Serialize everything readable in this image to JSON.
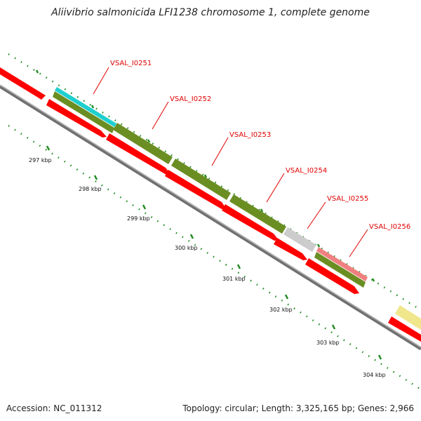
{
  "title": "Aliivibrio salmonicida LFI1238 chromosome 1, complete genome",
  "footer": {
    "accession": "Accession: NC_011312",
    "summary": "Topology: circular; Length: 3,325,165 bp; Genes: 2,966"
  },
  "colors": {
    "cds": "#ff0000",
    "gene": "#6b8e23",
    "backbone": "#808080",
    "tick": "#228b22",
    "label": "#e00000",
    "trna": "#1ecfcf",
    "pseudo": "#cccccc",
    "rrna": "#f08080",
    "misc": "#f0e68c"
  },
  "gene_labels": [
    "VSAL_I0251",
    "VSAL_I0252",
    "VSAL_I0253",
    "VSAL_I0254",
    "VSAL_I0255",
    "VSAL_I0256"
  ],
  "scale_labels": [
    "297 kbp",
    "298 kbp",
    "299 kbp",
    "300 kbp",
    "301 kbp",
    "302 kbp",
    "303 kbp",
    "304 kbp"
  ]
}
